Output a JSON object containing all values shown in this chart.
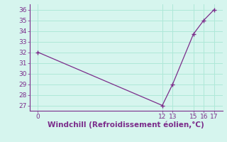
{
  "x": [
    0,
    12,
    13,
    15,
    16,
    17
  ],
  "y": [
    32,
    27,
    29,
    33.7,
    35,
    36
  ],
  "line_color": "#7b2d8b",
  "marker_color": "#7b2d8b",
  "background_color": "#d6f5ee",
  "grid_color": "#aee8d8",
  "spine_color": "#7b2d8b",
  "xlabel": "Windchill (Refroidissement éolien,°C)",
  "xlabel_color": "#7b2d8b",
  "tick_color": "#7b2d8b",
  "ylim": [
    26.5,
    36.5
  ],
  "yticks": [
    27,
    28,
    29,
    30,
    31,
    32,
    33,
    34,
    35,
    36
  ],
  "xticks": [
    0,
    12,
    13,
    15,
    16,
    17
  ],
  "xlim": [
    -0.8,
    17.8
  ],
  "font_size": 6.5,
  "xlabel_font_size": 7.5
}
